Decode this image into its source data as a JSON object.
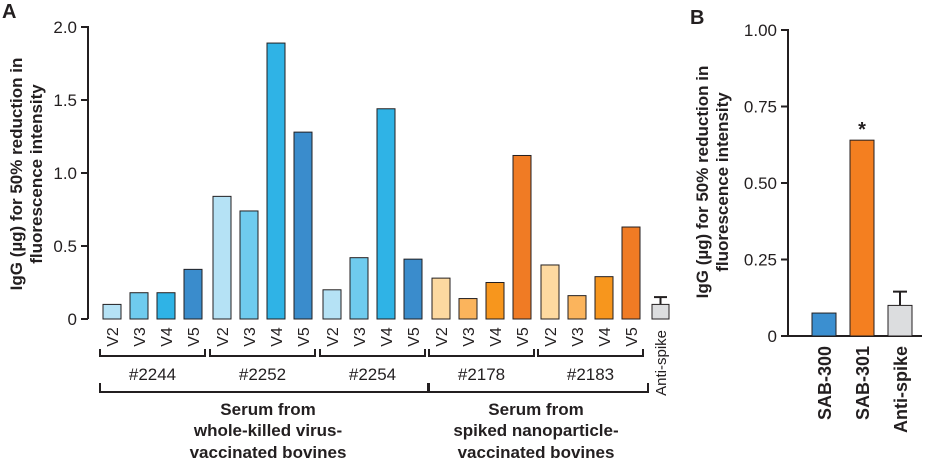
{
  "chart_data": [
    {
      "panel": "A",
      "type": "bar",
      "ylabel_line1": "IgG (µg) for 50% reduction in",
      "ylabel_line2": "fluorescence intensity",
      "ylim": [
        0,
        2.0
      ],
      "yticks": [
        "0",
        "0.5",
        "1.0",
        "1.5",
        "2.0"
      ],
      "ytick_values": [
        0,
        0.5,
        1.0,
        1.5,
        2.0
      ],
      "groups": [
        {
          "name": "#2244",
          "family": "blue",
          "categories": [
            "V2",
            "V3",
            "V4",
            "V5"
          ],
          "values": [
            0.1,
            0.18,
            0.18,
            0.34
          ]
        },
        {
          "name": "#2252",
          "family": "blue",
          "categories": [
            "V2",
            "V3",
            "V4",
            "V5"
          ],
          "values": [
            0.84,
            0.74,
            1.89,
            1.28
          ]
        },
        {
          "name": "#2254",
          "family": "blue",
          "categories": [
            "V2",
            "V3",
            "V4",
            "V5"
          ],
          "values": [
            0.2,
            0.42,
            1.44,
            0.41
          ]
        },
        {
          "name": "#2178",
          "family": "orange",
          "categories": [
            "V2",
            "V3",
            "V4",
            "V5"
          ],
          "values": [
            0.28,
            0.14,
            0.25,
            1.12
          ]
        },
        {
          "name": "#2183",
          "family": "orange",
          "categories": [
            "V2",
            "V3",
            "V4",
            "V5"
          ],
          "values": [
            0.37,
            0.16,
            0.29,
            0.63
          ]
        }
      ],
      "control": {
        "label": "Anti-spike",
        "value": 0.1,
        "error": 0.05
      },
      "supergroups": [
        {
          "line1": "Serum from",
          "line2": "whole-killed virus-",
          "line3": "vaccinated bovines"
        },
        {
          "line1": "Serum from",
          "line2": "spiked nanoparticle-",
          "line3": "vaccinated bovines"
        }
      ]
    },
    {
      "panel": "B",
      "type": "bar",
      "ylabel_line1": "IgG (µg) for 50% reduction in",
      "ylabel_line2": "fluorescence intensity",
      "ylim": [
        0,
        1.0
      ],
      "yticks": [
        "0",
        "0.25",
        "0.50",
        "0.75",
        "1.00"
      ],
      "ytick_values": [
        0,
        0.25,
        0.5,
        0.75,
        1.0
      ],
      "categories": [
        "SAB-300",
        "SAB-301",
        "Anti-spike"
      ],
      "values": [
        0.075,
        0.64,
        0.1
      ],
      "errors": [
        0,
        0,
        0.045
      ],
      "annotation": "*"
    }
  ],
  "colors": {
    "blue": [
      "#b5e2f5",
      "#6fcbee",
      "#2fb3e6",
      "#3a8ccc"
    ],
    "orange": [
      "#fdd9a0",
      "#fbb45c",
      "#f7961d",
      "#f07b24"
    ],
    "sab300": "#3b8fd0",
    "sab301": "#f47f20",
    "control": "#dcdddf",
    "axis": "#231f20"
  },
  "panel_labels": [
    "A",
    "B"
  ]
}
